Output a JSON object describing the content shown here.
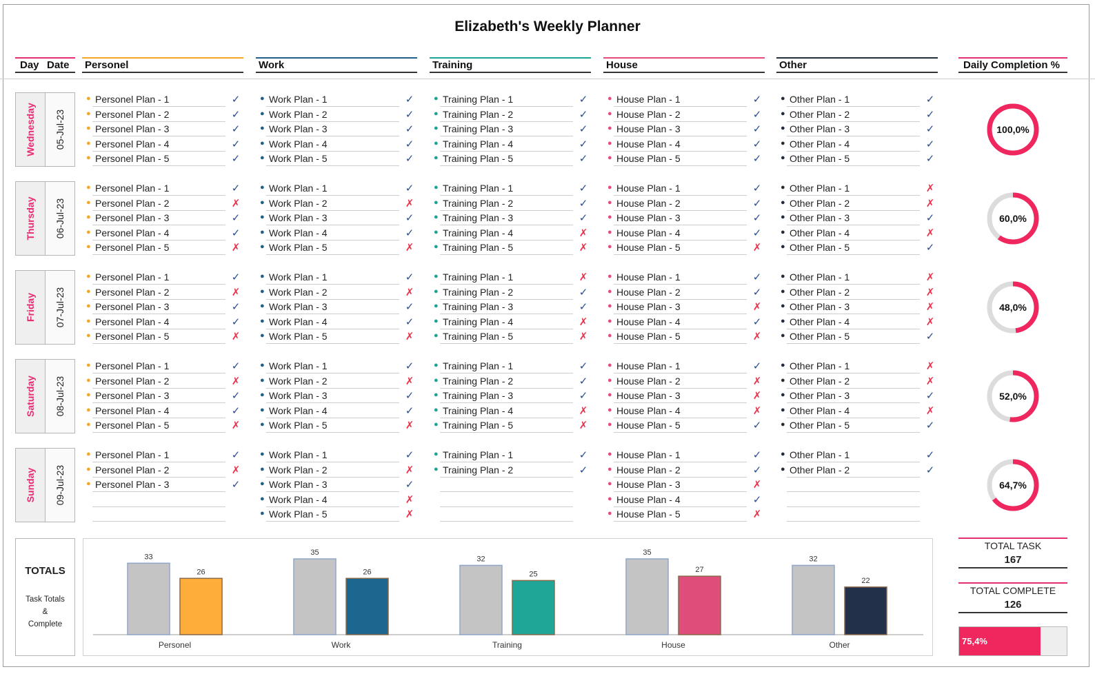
{
  "title": "Elizabeth's Weekly Planner",
  "headers": {
    "day": "Day",
    "date": "Date",
    "daily_completion": "Daily Completion %"
  },
  "categories": [
    {
      "name": "Personel",
      "color": "#f5a623",
      "bar_color": "#ffad3a"
    },
    {
      "name": "Work",
      "color": "#1f5f8b",
      "bar_color": "#1b6790"
    },
    {
      "name": "Training",
      "color": "#1ba393",
      "bar_color": "#20a697"
    },
    {
      "name": "House",
      "color": "#e64b7a",
      "bar_color": "#df4d7b"
    },
    {
      "name": "Other",
      "color": "#1f2d3d",
      "bar_color": "#22304a"
    }
  ],
  "days": [
    {
      "name": "Wednesday",
      "date": "05-Jul-23",
      "completion": "100,0%",
      "completion_value": 1.0,
      "lists": [
        [
          [
            "Personel Plan - 1",
            "check"
          ],
          [
            "Personel Plan - 2",
            "check"
          ],
          [
            "Personel Plan - 3",
            "check"
          ],
          [
            "Personel Plan - 4",
            "check"
          ],
          [
            "Personel Plan - 5",
            "check"
          ]
        ],
        [
          [
            "Work Plan - 1",
            "check"
          ],
          [
            "Work Plan - 2",
            "check"
          ],
          [
            "Work Plan - 3",
            "check"
          ],
          [
            "Work Plan - 4",
            "check"
          ],
          [
            "Work Plan - 5",
            "check"
          ]
        ],
        [
          [
            "Training Plan - 1",
            "check"
          ],
          [
            "Training Plan - 2",
            "check"
          ],
          [
            "Training Plan - 3",
            "check"
          ],
          [
            "Training Plan - 4",
            "check"
          ],
          [
            "Training Plan - 5",
            "check"
          ]
        ],
        [
          [
            "House Plan - 1",
            "check"
          ],
          [
            "House Plan - 2",
            "check"
          ],
          [
            "House Plan - 3",
            "check"
          ],
          [
            "House Plan - 4",
            "check"
          ],
          [
            "House Plan - 5",
            "check"
          ]
        ],
        [
          [
            "Other Plan - 1",
            "check"
          ],
          [
            "Other Plan - 2",
            "check"
          ],
          [
            "Other Plan - 3",
            "check"
          ],
          [
            "Other Plan - 4",
            "check"
          ],
          [
            "Other Plan - 5",
            "check"
          ]
        ]
      ]
    },
    {
      "name": "Thursday",
      "date": "06-Jul-23",
      "completion": "60,0%",
      "completion_value": 0.6,
      "lists": [
        [
          [
            "Personel Plan - 1",
            "check"
          ],
          [
            "Personel Plan - 2",
            "cross"
          ],
          [
            "Personel Plan - 3",
            "check"
          ],
          [
            "Personel Plan - 4",
            "check"
          ],
          [
            "Personel Plan - 5",
            "cross"
          ]
        ],
        [
          [
            "Work Plan - 1",
            "check"
          ],
          [
            "Work Plan - 2",
            "cross"
          ],
          [
            "Work Plan - 3",
            "check"
          ],
          [
            "Work Plan - 4",
            "check"
          ],
          [
            "Work Plan - 5",
            "cross"
          ]
        ],
        [
          [
            "Training Plan - 1",
            "check"
          ],
          [
            "Training Plan - 2",
            "check"
          ],
          [
            "Training Plan - 3",
            "check"
          ],
          [
            "Training Plan - 4",
            "cross"
          ],
          [
            "Training Plan - 5",
            "cross"
          ]
        ],
        [
          [
            "House Plan - 1",
            "check"
          ],
          [
            "House Plan - 2",
            "check"
          ],
          [
            "House Plan - 3",
            "check"
          ],
          [
            "House Plan - 4",
            "check"
          ],
          [
            "House Plan - 5",
            "cross"
          ]
        ],
        [
          [
            "Other Plan - 1",
            "cross"
          ],
          [
            "Other Plan - 2",
            "cross"
          ],
          [
            "Other Plan - 3",
            "check"
          ],
          [
            "Other Plan - 4",
            "cross"
          ],
          [
            "Other Plan - 5",
            "check"
          ]
        ]
      ]
    },
    {
      "name": "Friday",
      "date": "07-Jul-23",
      "completion": "48,0%",
      "completion_value": 0.48,
      "lists": [
        [
          [
            "Personel Plan - 1",
            "check"
          ],
          [
            "Personel Plan - 2",
            "cross"
          ],
          [
            "Personel Plan - 3",
            "check"
          ],
          [
            "Personel Plan - 4",
            "check"
          ],
          [
            "Personel Plan - 5",
            "cross"
          ]
        ],
        [
          [
            "Work Plan - 1",
            "check"
          ],
          [
            "Work Plan - 2",
            "cross"
          ],
          [
            "Work Plan - 3",
            "check"
          ],
          [
            "Work Plan - 4",
            "check"
          ],
          [
            "Work Plan - 5",
            "cross"
          ]
        ],
        [
          [
            "Training Plan - 1",
            "cross"
          ],
          [
            "Training Plan - 2",
            "check"
          ],
          [
            "Training Plan - 3",
            "check"
          ],
          [
            "Training Plan - 4",
            "cross"
          ],
          [
            "Training Plan - 5",
            "cross"
          ]
        ],
        [
          [
            "House Plan - 1",
            "check"
          ],
          [
            "House Plan - 2",
            "check"
          ],
          [
            "House Plan - 3",
            "cross"
          ],
          [
            "House Plan - 4",
            "check"
          ],
          [
            "House Plan - 5",
            "cross"
          ]
        ],
        [
          [
            "Other Plan - 1",
            "cross"
          ],
          [
            "Other Plan - 2",
            "cross"
          ],
          [
            "Other Plan - 3",
            "cross"
          ],
          [
            "Other Plan - 4",
            "cross"
          ],
          [
            "Other Plan - 5",
            "check"
          ]
        ]
      ]
    },
    {
      "name": "Saturday",
      "date": "08-Jul-23",
      "completion": "52,0%",
      "completion_value": 0.52,
      "lists": [
        [
          [
            "Personel Plan - 1",
            "check"
          ],
          [
            "Personel Plan - 2",
            "cross"
          ],
          [
            "Personel Plan - 3",
            "check"
          ],
          [
            "Personel Plan - 4",
            "check"
          ],
          [
            "Personel Plan - 5",
            "cross"
          ]
        ],
        [
          [
            "Work Plan - 1",
            "check"
          ],
          [
            "Work Plan - 2",
            "cross"
          ],
          [
            "Work Plan - 3",
            "check"
          ],
          [
            "Work Plan - 4",
            "check"
          ],
          [
            "Work Plan - 5",
            "cross"
          ]
        ],
        [
          [
            "Training Plan - 1",
            "check"
          ],
          [
            "Training Plan - 2",
            "check"
          ],
          [
            "Training Plan - 3",
            "check"
          ],
          [
            "Training Plan - 4",
            "cross"
          ],
          [
            "Training Plan - 5",
            "cross"
          ]
        ],
        [
          [
            "House Plan - 1",
            "check"
          ],
          [
            "House Plan - 2",
            "cross"
          ],
          [
            "House Plan - 3",
            "cross"
          ],
          [
            "House Plan - 4",
            "cross"
          ],
          [
            "House Plan - 5",
            "check"
          ]
        ],
        [
          [
            "Other Plan - 1",
            "cross"
          ],
          [
            "Other Plan - 2",
            "cross"
          ],
          [
            "Other Plan - 3",
            "check"
          ],
          [
            "Other Plan - 4",
            "cross"
          ],
          [
            "Other Plan - 5",
            "check"
          ]
        ]
      ]
    },
    {
      "name": "Sunday",
      "date": "09-Jul-23",
      "completion": "64,7%",
      "completion_value": 0.647,
      "lists": [
        [
          [
            "Personel Plan - 1",
            "check"
          ],
          [
            "Personel Plan - 2",
            "cross"
          ],
          [
            "Personel Plan - 3",
            "check"
          ],
          [
            "",
            ""
          ],
          [
            "",
            ""
          ]
        ],
        [
          [
            "Work Plan - 1",
            "check"
          ],
          [
            "Work Plan - 2",
            "cross"
          ],
          [
            "Work Plan - 3",
            "check"
          ],
          [
            "Work Plan - 4",
            "cross"
          ],
          [
            "Work Plan - 5",
            "cross"
          ]
        ],
        [
          [
            "Training Plan - 1",
            "check"
          ],
          [
            "Training Plan - 2",
            "check"
          ],
          [
            "",
            ""
          ],
          [
            "",
            ""
          ],
          [
            "",
            ""
          ]
        ],
        [
          [
            "House Plan - 1",
            "check"
          ],
          [
            "House Plan - 2",
            "check"
          ],
          [
            "House Plan - 3",
            "cross"
          ],
          [
            "House Plan - 4",
            "check"
          ],
          [
            "House Plan - 5",
            "cross"
          ]
        ],
        [
          [
            "Other Plan - 1",
            "check"
          ],
          [
            "Other Plan - 2",
            "check"
          ],
          [
            "",
            ""
          ],
          [
            "",
            ""
          ],
          [
            "",
            ""
          ]
        ]
      ]
    }
  ],
  "totals": {
    "title": "TOTALS",
    "subtitle": "Task Totals\n&\nComplete",
    "total_task_label": "TOTAL TASK",
    "total_task": "167",
    "total_complete_label": "TOTAL COMPLETE",
    "total_complete": "126",
    "overall_percent": "75,4%",
    "overall_value": 0.754
  },
  "chart_data": {
    "type": "bar",
    "categories": [
      "Personel",
      "Work",
      "Training",
      "House",
      "Other"
    ],
    "series": [
      {
        "values": [
          33,
          35,
          32,
          35,
          32
        ],
        "color": "#c4c4c4"
      },
      {
        "values": [
          26,
          26,
          25,
          27,
          22
        ]
      }
    ],
    "ylim": [
      0,
      35
    ],
    "grid": false
  },
  "colors": {
    "accent": "#f0265e",
    "check": "#2a4d8f",
    "cross": "#e8334d",
    "ring_track": "#dcdcdc"
  }
}
